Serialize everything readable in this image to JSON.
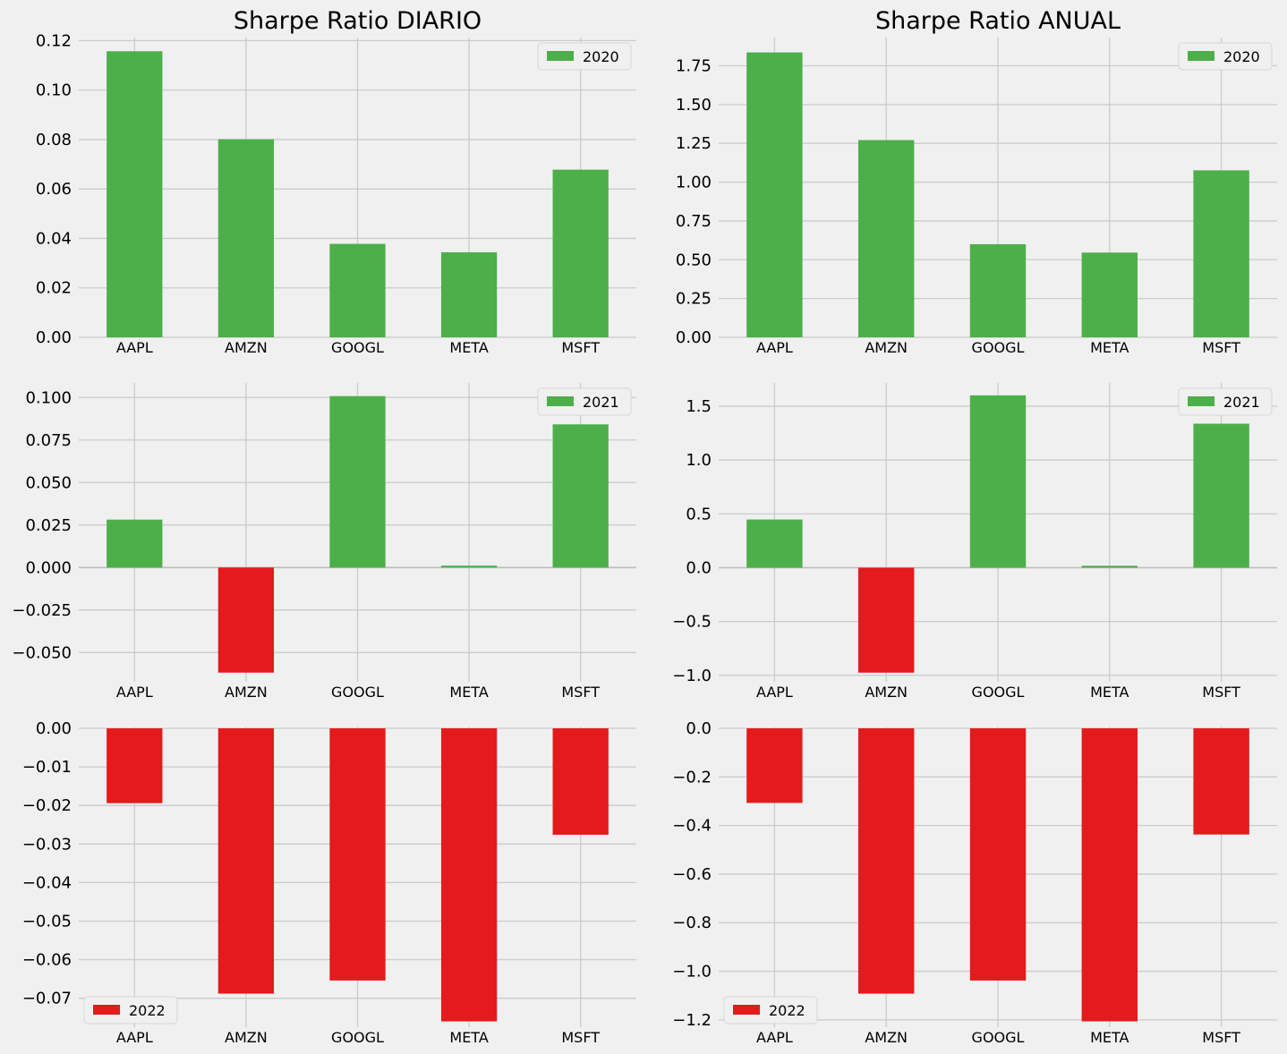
{
  "colors": {
    "positive": "#4daf4a",
    "negative": "#e41a1c",
    "background": "#f0f0f0",
    "grid": "#cbcbcb"
  },
  "chart_data": [
    {
      "type": "bar",
      "title": "Sharpe Ratio DIARIO",
      "legend": "2020",
      "legend_loc": "upper-right",
      "categories": [
        "AAPL",
        "AMZN",
        "GOOGL",
        "META",
        "MSFT"
      ],
      "values": [
        0.1157,
        0.0801,
        0.0378,
        0.0344,
        0.0678
      ],
      "ylim": [
        0,
        0.1205
      ],
      "yticks": [
        0.0,
        0.02,
        0.04,
        0.06,
        0.08,
        0.1,
        0.12
      ],
      "ytick_labels": [
        "0.00",
        "0.02",
        "0.04",
        "0.06",
        "0.08",
        "0.10",
        "0.12"
      ],
      "grid": true
    },
    {
      "type": "bar",
      "title": "Sharpe Ratio ANUAL",
      "legend": "2020",
      "legend_loc": "upper-right",
      "categories": [
        "AAPL",
        "AMZN",
        "GOOGL",
        "META",
        "MSFT"
      ],
      "values": [
        1.836,
        1.271,
        0.6,
        0.546,
        1.076
      ],
      "ylim": [
        0,
        1.92
      ],
      "yticks": [
        0,
        0.25,
        0.5,
        0.75,
        1.0,
        1.25,
        1.5,
        1.75
      ],
      "ytick_labels": [
        "0.00",
        "0.25",
        "0.50",
        "0.75",
        "1.00",
        "1.25",
        "1.50",
        "1.75"
      ],
      "grid": true
    },
    {
      "type": "bar",
      "title": "",
      "legend": "2021",
      "legend_loc": "upper-right",
      "categories": [
        "AAPL",
        "AMZN",
        "GOOGL",
        "META",
        "MSFT"
      ],
      "values": [
        0.0282,
        -0.0618,
        0.1008,
        0.0011,
        0.0842
      ],
      "ylim": [
        -0.0672,
        0.1075
      ],
      "yticks": [
        -0.05,
        -0.025,
        0,
        0.025,
        0.05,
        0.075,
        0.1
      ],
      "ytick_labels": [
        "−0.050",
        "−0.025",
        "0.000",
        "0.025",
        "0.050",
        "0.075",
        "0.100"
      ],
      "grid": true
    },
    {
      "type": "bar",
      "title": "",
      "legend": "2021",
      "legend_loc": "upper-right",
      "categories": [
        "AAPL",
        "AMZN",
        "GOOGL",
        "META",
        "MSFT"
      ],
      "values": [
        0.448,
        -0.975,
        1.601,
        0.018,
        1.338
      ],
      "ylim": [
        -1.06,
        1.7
      ],
      "yticks": [
        -1.0,
        -0.5,
        0,
        0.5,
        1.0,
        1.5
      ],
      "ytick_labels": [
        "−1.0",
        "−0.5",
        "0.0",
        "0.5",
        "1.0",
        "1.5"
      ],
      "grid": true
    },
    {
      "type": "bar",
      "title": "",
      "legend": "2022",
      "legend_loc": "lower-left",
      "categories": [
        "AAPL",
        "AMZN",
        "GOOGL",
        "META",
        "MSFT"
      ],
      "values": [
        -0.0194,
        -0.0688,
        -0.0654,
        -0.076,
        -0.0276
      ],
      "ylim": [
        -0.0775,
        0.0
      ],
      "yticks": [
        -0.07,
        -0.06,
        -0.05,
        -0.04,
        -0.03,
        -0.02,
        -0.01,
        0.0
      ],
      "ytick_labels": [
        "−0.07",
        "−0.06",
        "−0.05",
        "−0.04",
        "−0.03",
        "−0.02",
        "−0.01",
        "0.00"
      ],
      "grid": true
    },
    {
      "type": "bar",
      "title": "",
      "legend": "2022",
      "legend_loc": "lower-left",
      "categories": [
        "AAPL",
        "AMZN",
        "GOOGL",
        "META",
        "MSFT"
      ],
      "values": [
        -0.307,
        -1.092,
        -1.038,
        -1.206,
        -0.437
      ],
      "ylim": [
        -1.23,
        0.0
      ],
      "yticks": [
        -1.2,
        -1.0,
        -0.8,
        -0.6,
        -0.4,
        -0.2,
        0.0
      ],
      "ytick_labels": [
        "−1.2",
        "−1.0",
        "−0.8",
        "−0.6",
        "−0.4",
        "−0.2",
        "0.0"
      ],
      "grid": true
    }
  ]
}
